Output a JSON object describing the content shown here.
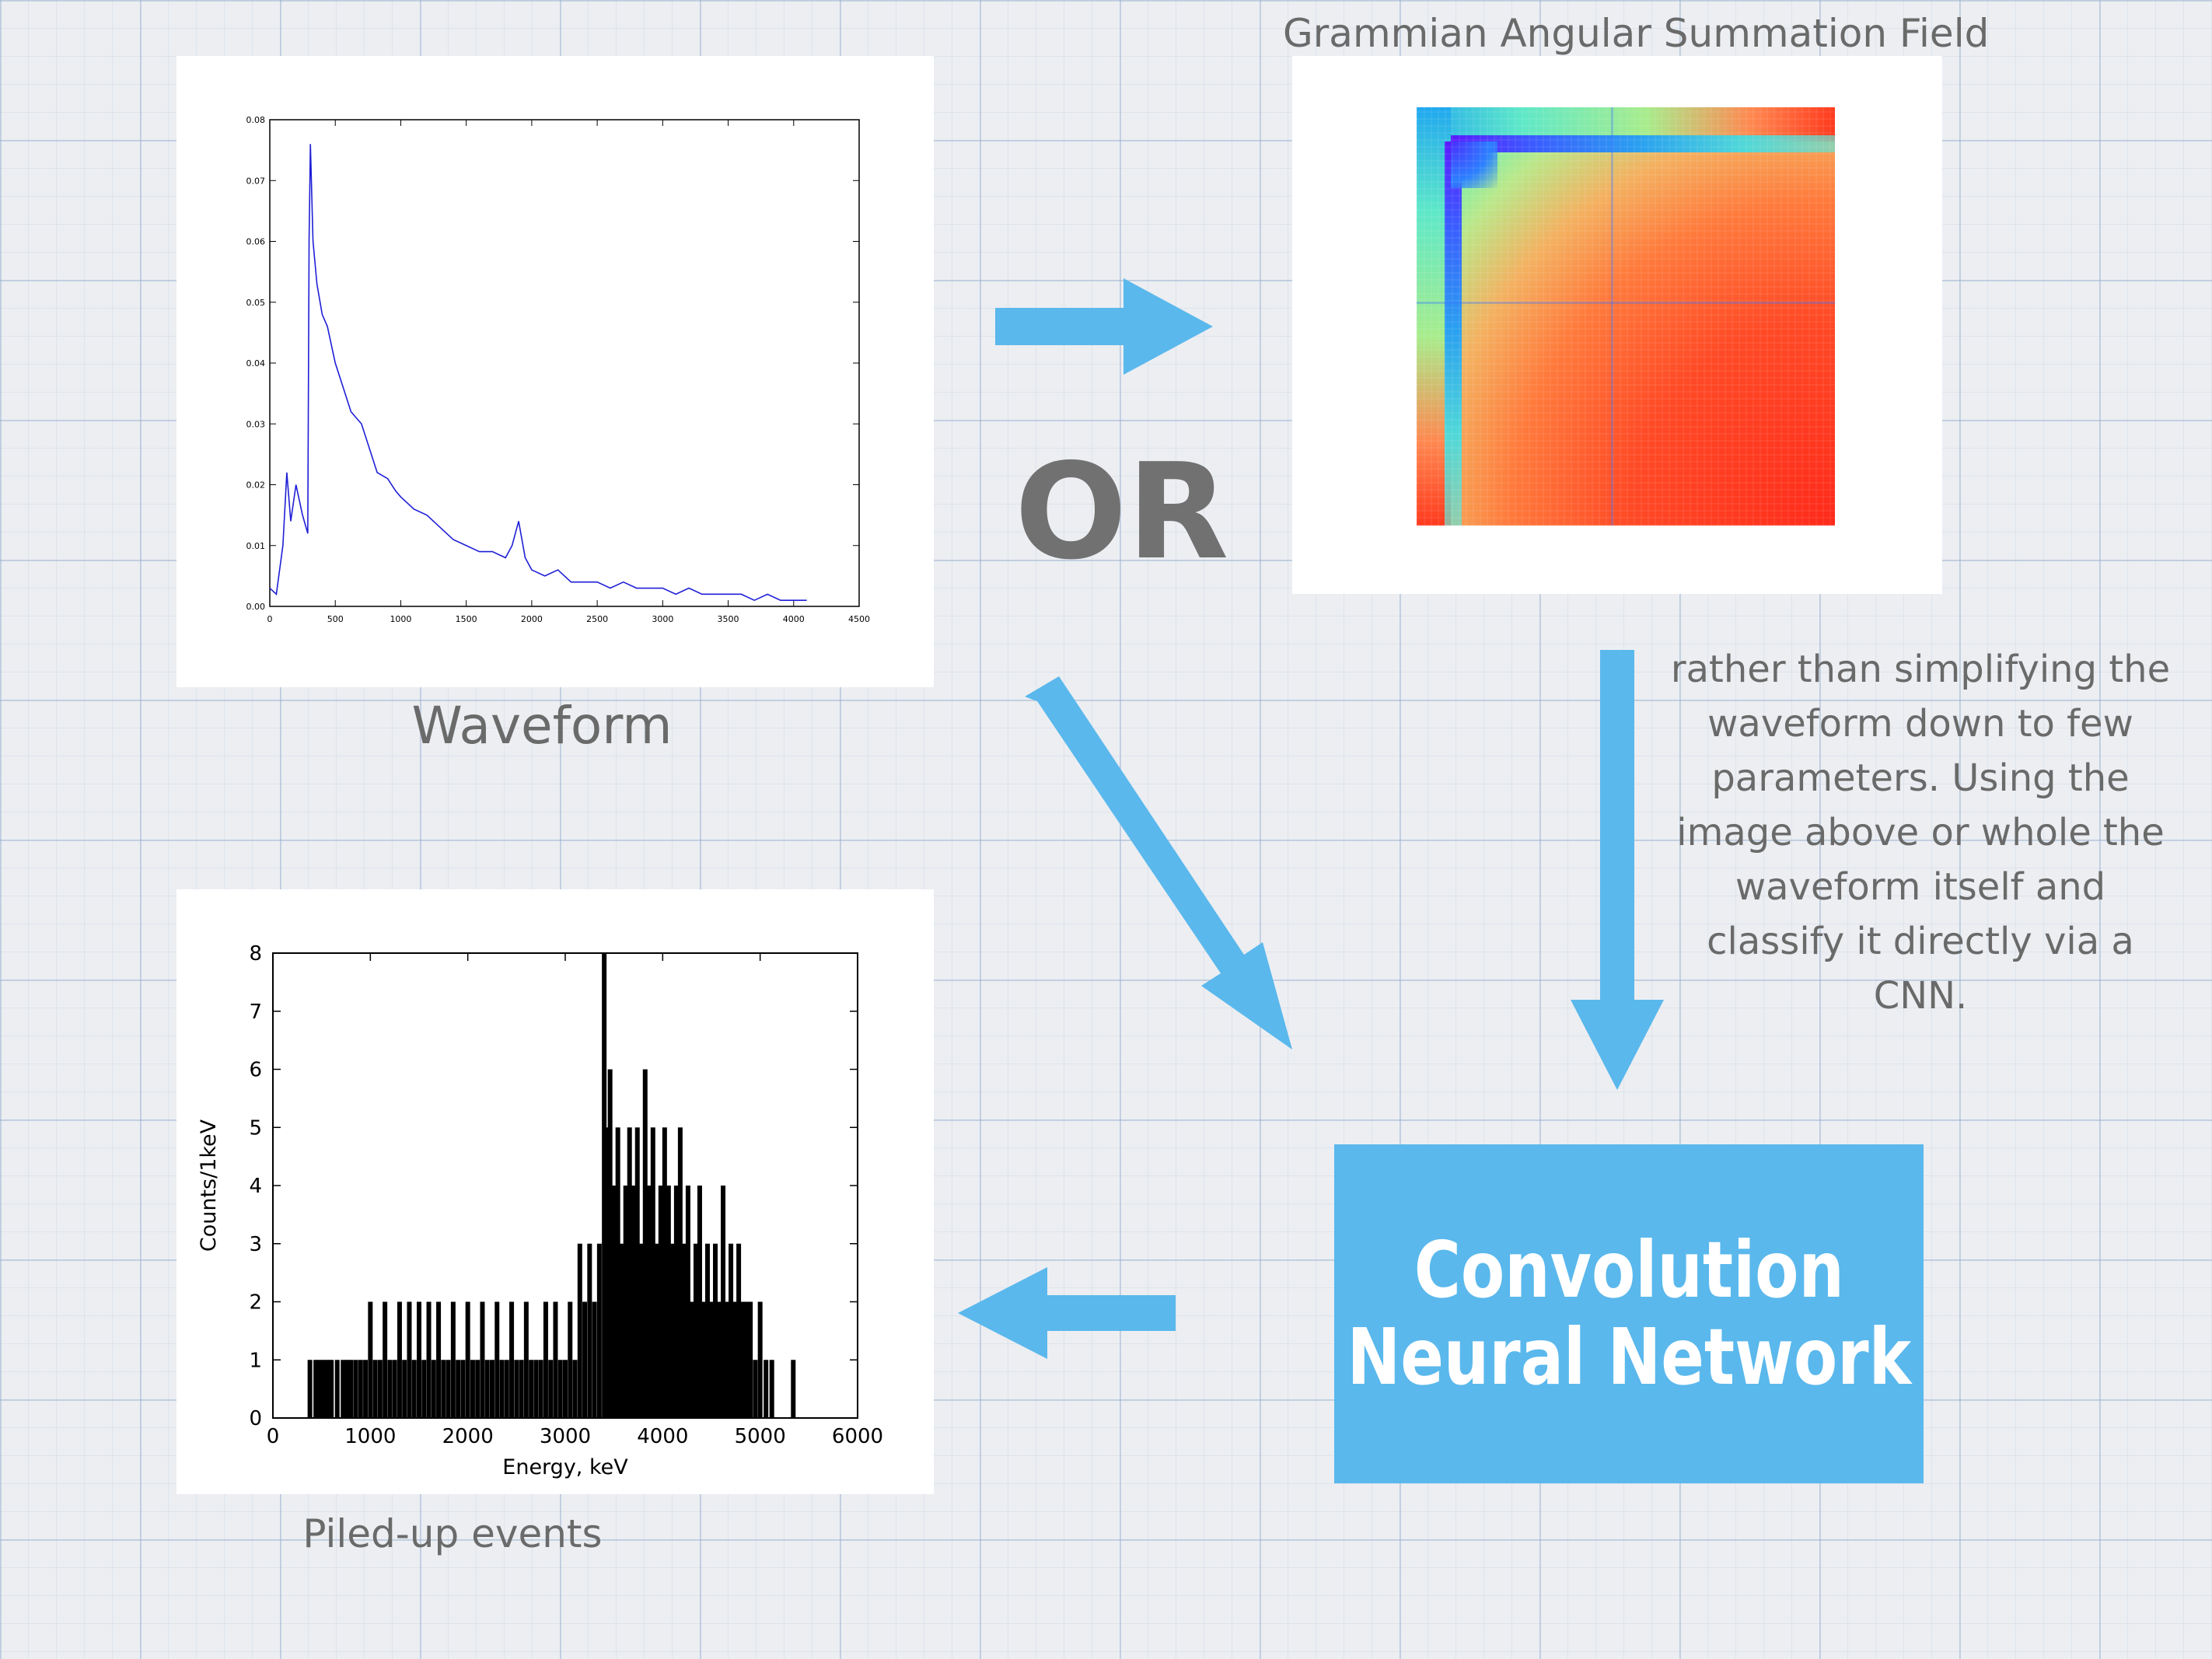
{
  "gasf_title": "Grammian Angular Summation Field",
  "waveform_caption": "Waveform",
  "or_label": "OR",
  "cnn_label_line1": "Convolution",
  "cnn_label_line2": "Neural Network",
  "note_text": "rather than simplifying the waveform down to few parameters. Using the image above or whole the waveform itself and classify it directly via a CNN.",
  "pileup_caption": "Piled-up events",
  "colors": {
    "arrow": "#5ab8ec",
    "cnn_box": "#5ab8ec",
    "caption_text": "#6a6a6a",
    "waveform_line": "#1f1fd6"
  },
  "chart_data": [
    {
      "type": "line",
      "x": [
        0,
        50,
        100,
        130,
        160,
        200,
        250,
        290,
        300,
        310,
        330,
        360,
        400,
        440,
        500,
        560,
        620,
        700,
        760,
        820,
        900,
        960,
        1000,
        1100,
        1200,
        1300,
        1400,
        1500,
        1600,
        1700,
        1800,
        1850,
        1900,
        1950,
        2000,
        2100,
        2200,
        2300,
        2400,
        2500,
        2600,
        2700,
        2800,
        2900,
        3000,
        3100,
        3200,
        3300,
        3400,
        3500,
        3600,
        3700,
        3800,
        3900,
        4000,
        4100
      ],
      "y": [
        0.003,
        0.002,
        0.01,
        0.022,
        0.014,
        0.02,
        0.015,
        0.012,
        0.06,
        0.076,
        0.06,
        0.053,
        0.048,
        0.046,
        0.04,
        0.036,
        0.032,
        0.03,
        0.026,
        0.022,
        0.021,
        0.019,
        0.018,
        0.016,
        0.015,
        0.013,
        0.011,
        0.01,
        0.009,
        0.009,
        0.008,
        0.01,
        0.014,
        0.008,
        0.006,
        0.005,
        0.006,
        0.004,
        0.004,
        0.004,
        0.003,
        0.004,
        0.003,
        0.003,
        0.003,
        0.002,
        0.003,
        0.002,
        0.002,
        0.002,
        0.002,
        0.001,
        0.002,
        0.001,
        0.001,
        0.001
      ],
      "xlim": [
        0,
        4500
      ],
      "ylim": [
        0,
        0.08
      ],
      "xticks": [
        "0",
        "500",
        "1000",
        "1500",
        "2000",
        "2500",
        "3000",
        "3500",
        "4000",
        "4500"
      ],
      "yticks": [
        "0.00",
        "0.01",
        "0.02",
        "0.03",
        "0.04",
        "0.05",
        "0.06",
        "0.07",
        "0.08"
      ],
      "xlabel": "",
      "ylabel": "",
      "title": ""
    },
    {
      "type": "heatmap",
      "colormap": "rainbow",
      "title": "Grammian Angular Summation Field"
    },
    {
      "type": "bar",
      "x": [
        380,
        440,
        480,
        520,
        560,
        600,
        660,
        720,
        760,
        800,
        850,
        900,
        950,
        1000,
        1050,
        1100,
        1150,
        1200,
        1250,
        1300,
        1350,
        1400,
        1450,
        1500,
        1550,
        1600,
        1650,
        1700,
        1750,
        1800,
        1850,
        1900,
        1950,
        2000,
        2050,
        2100,
        2150,
        2200,
        2250,
        2300,
        2350,
        2400,
        2450,
        2500,
        2550,
        2600,
        2650,
        2700,
        2750,
        2800,
        2850,
        2900,
        2950,
        3000,
        3050,
        3100,
        3150,
        3200,
        3250,
        3300,
        3350,
        3400,
        3430,
        3460,
        3500,
        3540,
        3580,
        3620,
        3660,
        3700,
        3740,
        3780,
        3820,
        3860,
        3900,
        3940,
        3980,
        4020,
        4060,
        4100,
        4140,
        4180,
        4220,
        4260,
        4300,
        4340,
        4380,
        4420,
        4460,
        4500,
        4540,
        4580,
        4620,
        4660,
        4700,
        4740,
        4780,
        4820,
        4860,
        4900,
        4950,
        5000,
        5060,
        5120,
        5340
      ],
      "values": [
        1,
        1,
        1,
        1,
        1,
        1,
        1,
        1,
        1,
        1,
        1,
        1,
        1,
        2,
        1,
        1,
        2,
        1,
        1,
        2,
        1,
        2,
        1,
        2,
        1,
        2,
        1,
        2,
        1,
        1,
        2,
        1,
        1,
        2,
        1,
        1,
        2,
        1,
        1,
        2,
        1,
        1,
        2,
        1,
        1,
        2,
        1,
        1,
        1,
        2,
        1,
        2,
        1,
        1,
        2,
        1,
        3,
        2,
        3,
        2,
        3,
        8,
        5,
        6,
        4,
        5,
        3,
        4,
        5,
        4,
        5,
        3,
        6,
        4,
        5,
        3,
        4,
        5,
        4,
        3,
        4,
        5,
        3,
        4,
        2,
        3,
        4,
        2,
        3,
        2,
        3,
        2,
        4,
        2,
        3,
        2,
        3,
        2,
        2,
        2,
        1,
        2,
        1,
        1,
        1
      ],
      "xlim": [
        0,
        6000
      ],
      "ylim": [
        0,
        8
      ],
      "xticks": [
        "0",
        "1000",
        "2000",
        "3000",
        "4000",
        "5000",
        "6000"
      ],
      "yticks": [
        "0",
        "1",
        "2",
        "3",
        "4",
        "5",
        "6",
        "7",
        "8"
      ],
      "xlabel": "Energy, keV",
      "ylabel": "Counts/1keV",
      "title": ""
    }
  ]
}
